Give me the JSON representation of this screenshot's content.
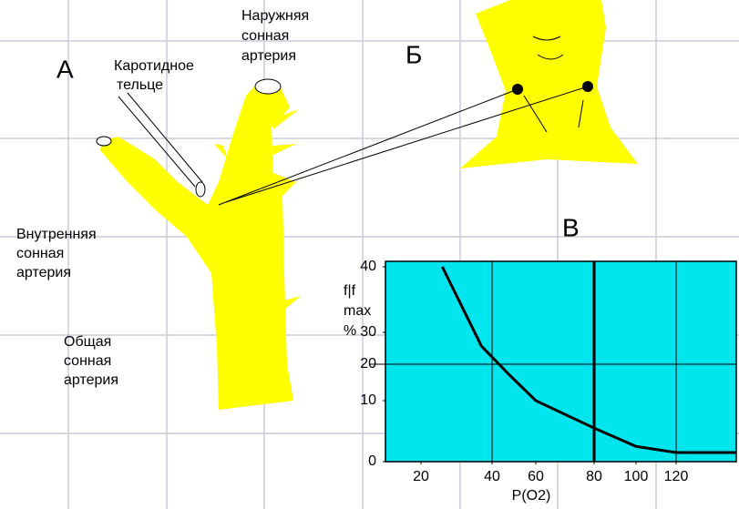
{
  "labels": {
    "panel_a": "А",
    "panel_b": "Б",
    "panel_c": "В",
    "carotid_body": [
      "Каротидное",
      "тельце"
    ],
    "external_artery": [
      "Наружняя",
      "сонная",
      "артерия"
    ],
    "internal_artery": [
      "Внутренняя",
      "сонная",
      "артерия"
    ],
    "common_artery": [
      "Общая",
      "сонная",
      "артерия"
    ]
  },
  "chart_data": {
    "type": "line",
    "x_label": "P(O2)",
    "y_label": [
      "f|f",
      "max",
      "%"
    ],
    "x": [
      26,
      37,
      48,
      60,
      80,
      100,
      120,
      150
    ],
    "series": [
      {
        "color": "#000000",
        "values": [
          40,
          25.7,
          17,
          10,
          5.5,
          2.5,
          1.5,
          1.5
        ]
      }
    ],
    "xlim": [
      10,
      150
    ],
    "ylim": [
      0,
      40
    ],
    "xticks": [
      20,
      40,
      60,
      80,
      100,
      120
    ],
    "yticks": [
      0,
      10,
      20,
      30,
      40
    ],
    "background": "#00e5ee"
  }
}
